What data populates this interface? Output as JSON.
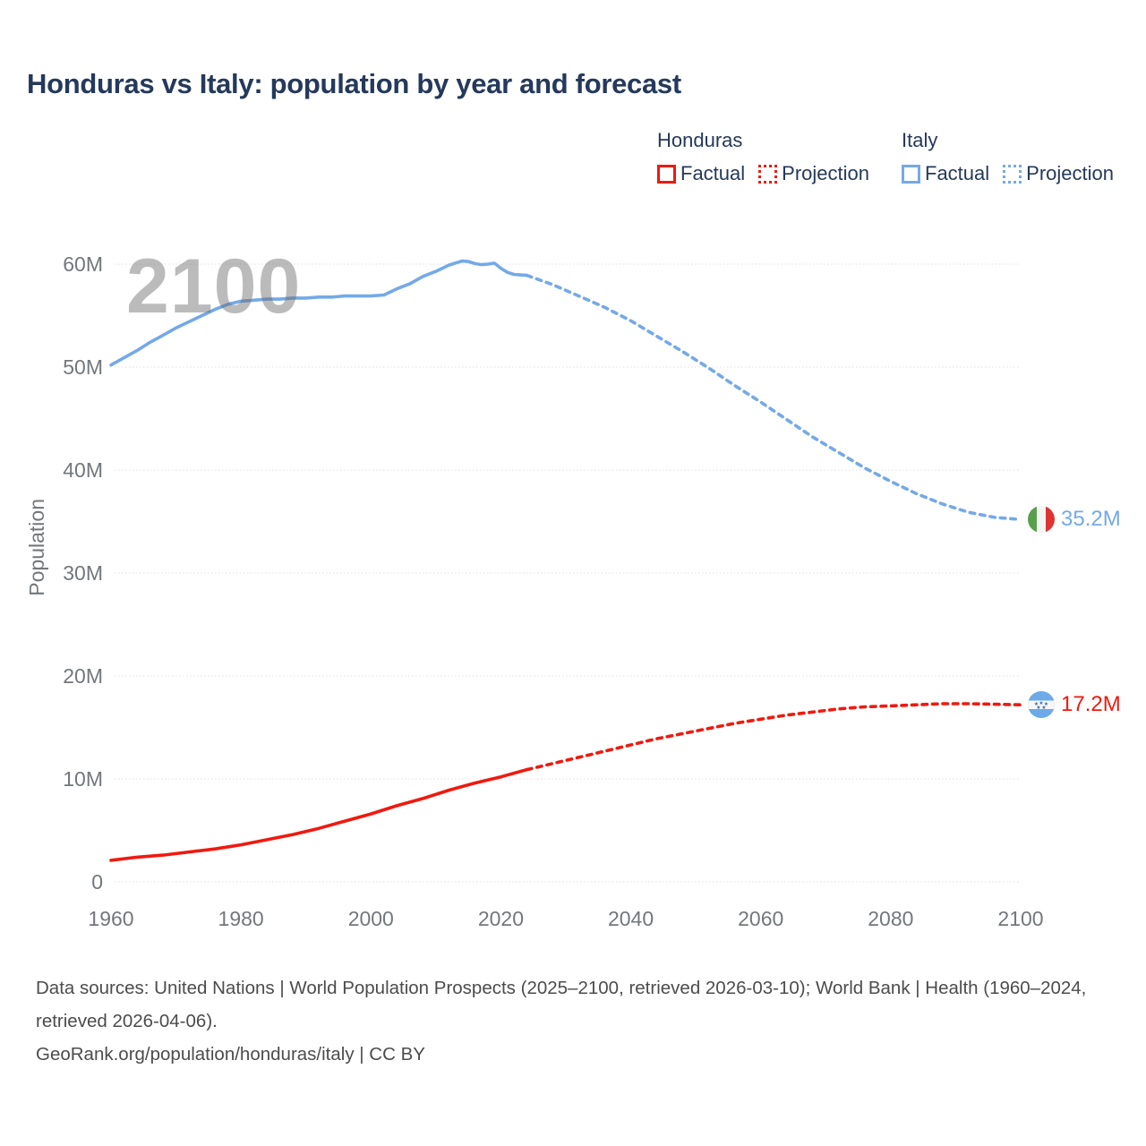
{
  "header": {
    "title": "Honduras vs Italy: population by year and forecast"
  },
  "legend": {
    "groups": [
      {
        "name": "Honduras",
        "color": "#f0190f",
        "items": [
          {
            "label": "Factual",
            "style": "solid"
          },
          {
            "label": "Projection",
            "style": "dotted"
          }
        ]
      },
      {
        "name": "Italy",
        "color": "#74a9e8",
        "items": [
          {
            "label": "Factual",
            "style": "solid"
          },
          {
            "label": "Projection",
            "style": "dotted"
          }
        ]
      }
    ]
  },
  "chart_data": {
    "type": "line",
    "title": "Honduras vs Italy: population by year and forecast",
    "xlabel": "",
    "ylabel": "Population",
    "watermark": "2100",
    "grid": "horizontal-dotted",
    "legend_position": "top-right",
    "x_axis": {
      "ticks": [
        1960,
        1980,
        2000,
        2020,
        2040,
        2060,
        2080,
        2100
      ],
      "range": [
        1960,
        2100
      ]
    },
    "y_axis": {
      "ticks": [
        {
          "label": "0",
          "value": 0
        },
        {
          "label": "10M",
          "value": 10
        },
        {
          "label": "20M",
          "value": 20
        },
        {
          "label": "30M",
          "value": 30
        },
        {
          "label": "40M",
          "value": 40
        },
        {
          "label": "50M",
          "value": 50
        },
        {
          "label": "60M",
          "value": 60
        }
      ],
      "range": [
        0,
        63
      ],
      "unit": "millions"
    },
    "series": [
      {
        "id": "honduras-factual",
        "country": "Honduras",
        "kind": "Factual",
        "color": "#f0190f",
        "style": "solid",
        "points": [
          [
            1960,
            2.1
          ],
          [
            1964,
            2.4
          ],
          [
            1968,
            2.6
          ],
          [
            1972,
            2.9
          ],
          [
            1976,
            3.2
          ],
          [
            1980,
            3.6
          ],
          [
            1984,
            4.1
          ],
          [
            1988,
            4.6
          ],
          [
            1992,
            5.2
          ],
          [
            1996,
            5.9
          ],
          [
            2000,
            6.6
          ],
          [
            2004,
            7.4
          ],
          [
            2008,
            8.1
          ],
          [
            2012,
            8.9
          ],
          [
            2016,
            9.6
          ],
          [
            2020,
            10.2
          ],
          [
            2024,
            10.9
          ]
        ]
      },
      {
        "id": "honduras-projection",
        "country": "Honduras",
        "kind": "Projection",
        "color": "#f0190f",
        "style": "dotted",
        "points": [
          [
            2024,
            10.9
          ],
          [
            2028,
            11.5
          ],
          [
            2032,
            12.1
          ],
          [
            2036,
            12.7
          ],
          [
            2040,
            13.3
          ],
          [
            2044,
            13.9
          ],
          [
            2048,
            14.4
          ],
          [
            2052,
            14.9
          ],
          [
            2056,
            15.4
          ],
          [
            2060,
            15.8
          ],
          [
            2064,
            16.2
          ],
          [
            2068,
            16.5
          ],
          [
            2072,
            16.8
          ],
          [
            2076,
            17.0
          ],
          [
            2080,
            17.1
          ],
          [
            2084,
            17.2
          ],
          [
            2088,
            17.3
          ],
          [
            2092,
            17.3
          ],
          [
            2096,
            17.25
          ],
          [
            2100,
            17.2
          ]
        ]
      },
      {
        "id": "italy-factual",
        "country": "Italy",
        "kind": "Factual",
        "color": "#74a9e8",
        "style": "solid",
        "points": [
          [
            1960,
            50.2
          ],
          [
            1962,
            50.9
          ],
          [
            1964,
            51.6
          ],
          [
            1966,
            52.4
          ],
          [
            1968,
            53.1
          ],
          [
            1970,
            53.8
          ],
          [
            1972,
            54.4
          ],
          [
            1974,
            55.0
          ],
          [
            1976,
            55.6
          ],
          [
            1978,
            56.1
          ],
          [
            1980,
            56.4
          ],
          [
            1982,
            56.5
          ],
          [
            1984,
            56.6
          ],
          [
            1986,
            56.6
          ],
          [
            1988,
            56.7
          ],
          [
            1990,
            56.7
          ],
          [
            1992,
            56.8
          ],
          [
            1994,
            56.8
          ],
          [
            1996,
            56.9
          ],
          [
            1998,
            56.9
          ],
          [
            2000,
            56.9
          ],
          [
            2002,
            57.0
          ],
          [
            2004,
            57.6
          ],
          [
            2006,
            58.1
          ],
          [
            2008,
            58.8
          ],
          [
            2010,
            59.3
          ],
          [
            2012,
            59.9
          ],
          [
            2014,
            60.3
          ],
          [
            2015,
            60.25
          ],
          [
            2016,
            60.05
          ],
          [
            2017,
            59.95
          ],
          [
            2018,
            60.0
          ],
          [
            2019,
            60.1
          ],
          [
            2020,
            59.6
          ],
          [
            2021,
            59.2
          ],
          [
            2022,
            59.0
          ],
          [
            2023,
            58.95
          ],
          [
            2024,
            58.9
          ]
        ]
      },
      {
        "id": "italy-projection",
        "country": "Italy",
        "kind": "Projection",
        "color": "#74a9e8",
        "style": "dotted",
        "points": [
          [
            2024,
            58.9
          ],
          [
            2028,
            58.0
          ],
          [
            2032,
            56.9
          ],
          [
            2036,
            55.8
          ],
          [
            2040,
            54.5
          ],
          [
            2044,
            53.0
          ],
          [
            2048,
            51.5
          ],
          [
            2052,
            49.9
          ],
          [
            2056,
            48.2
          ],
          [
            2060,
            46.6
          ],
          [
            2064,
            44.9
          ],
          [
            2068,
            43.2
          ],
          [
            2072,
            41.7
          ],
          [
            2076,
            40.2
          ],
          [
            2080,
            38.9
          ],
          [
            2084,
            37.7
          ],
          [
            2088,
            36.7
          ],
          [
            2092,
            35.9
          ],
          [
            2096,
            35.4
          ],
          [
            2100,
            35.2
          ]
        ]
      }
    ],
    "end_labels": [
      {
        "series": "Italy",
        "label": "35.2M",
        "value": 35.2,
        "flag": "italy-flag"
      },
      {
        "series": "Honduras",
        "label": "17.2M",
        "value": 17.2,
        "flag": "honduras-flag"
      }
    ]
  },
  "footer": {
    "sources": "Data sources: United Nations | World Population Prospects (2025–2100, retrieved 2026-03-10); World Bank | Health (1960–2024, retrieved 2026-04-06).",
    "attribution": "GeoRank.org/population/honduras/italy | CC BY"
  }
}
